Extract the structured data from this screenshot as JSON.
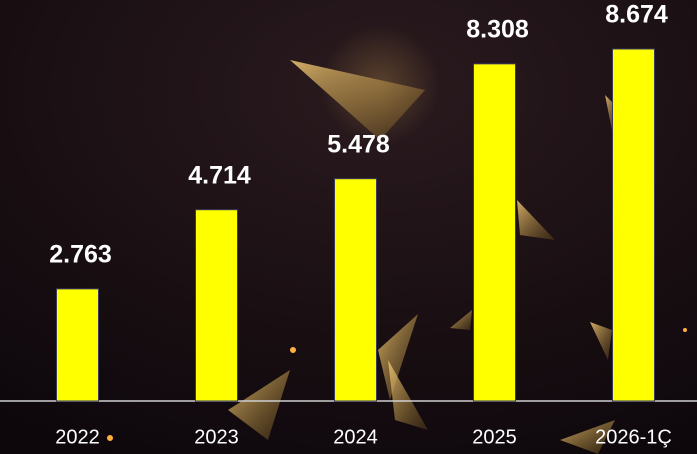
{
  "chart_data": {
    "type": "bar",
    "categories": [
      "2022",
      "2023",
      "2024",
      "2025",
      "2026-1Ç"
    ],
    "values": [
      2.763,
      4.714,
      5.478,
      8.308,
      8.674
    ],
    "color": "#ffff00"
  }
}
